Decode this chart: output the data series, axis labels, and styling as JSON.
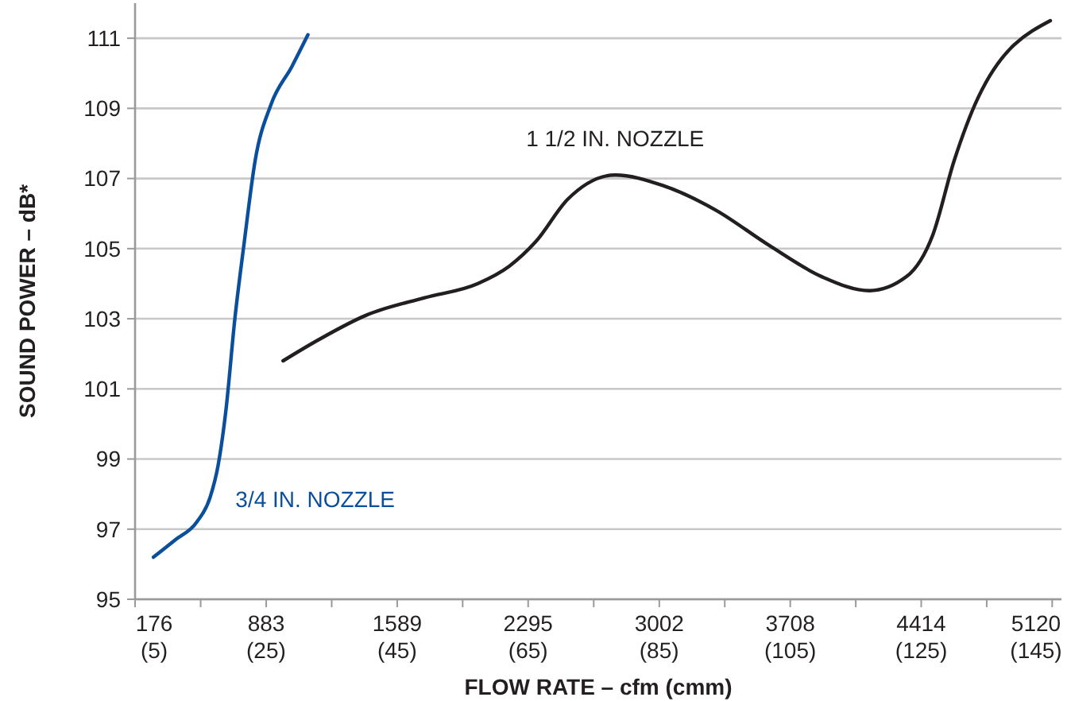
{
  "chart_data": {
    "type": "line",
    "xlabel": "FLOW RATE – cfm (cmm)",
    "ylabel": "SOUND POWER – dB*",
    "xlim": [
      176,
      5170
    ],
    "ylim": [
      95,
      112
    ],
    "xticks": [
      176,
      883,
      1589,
      2295,
      3002,
      3708,
      4414,
      5120
    ],
    "x2lim": [
      5,
      146.4
    ],
    "x2ticks": [
      {
        "value": 5,
        "label": "(5)"
      },
      {
        "value": 25,
        "label": "(25)"
      },
      {
        "value": 45,
        "label": "(45)"
      },
      {
        "value": 65,
        "label": "(65)"
      },
      {
        "value": 85,
        "label": "(85)"
      },
      {
        "value": 105,
        "label": "(105)"
      },
      {
        "value": 125,
        "label": "(125)"
      },
      {
        "value": 145,
        "label": "(145)"
      }
    ],
    "yticks": [
      95,
      97,
      99,
      101,
      103,
      105,
      107,
      109,
      111
    ],
    "grid": "y",
    "marker": "none",
    "line_style": "solid",
    "series": [
      {
        "name": "3/4 IN. NOZZLE",
        "color": "#0a4f9c",
        "x": [
          275,
          394,
          508,
          580,
          623,
          666,
          714,
          765,
          823,
          908,
          1022,
          1108
        ],
        "values": [
          96.2,
          96.7,
          97.2,
          97.9,
          98.8,
          100.4,
          103.0,
          105.2,
          107.5,
          109.1,
          110.2,
          111.1
        ]
      },
      {
        "name": "1 1/2 IN. NOZZLE",
        "color": "#231f20",
        "x": [
          974,
          1165,
          1422,
          1737,
          2022,
          2193,
          2336,
          2507,
          2764,
          3021,
          3306,
          3592,
          3878,
          4135,
          4334,
          4477,
          4591,
          4720,
          5110
        ],
        "values": [
          101.8,
          102.4,
          103.1,
          103.6,
          104.0,
          104.5,
          105.2,
          106.4,
          107.1,
          106.8,
          106.1,
          105.1,
          104.2,
          103.8,
          104.2,
          105.4,
          107.5,
          109.3,
          111.5
        ]
      }
    ]
  }
}
